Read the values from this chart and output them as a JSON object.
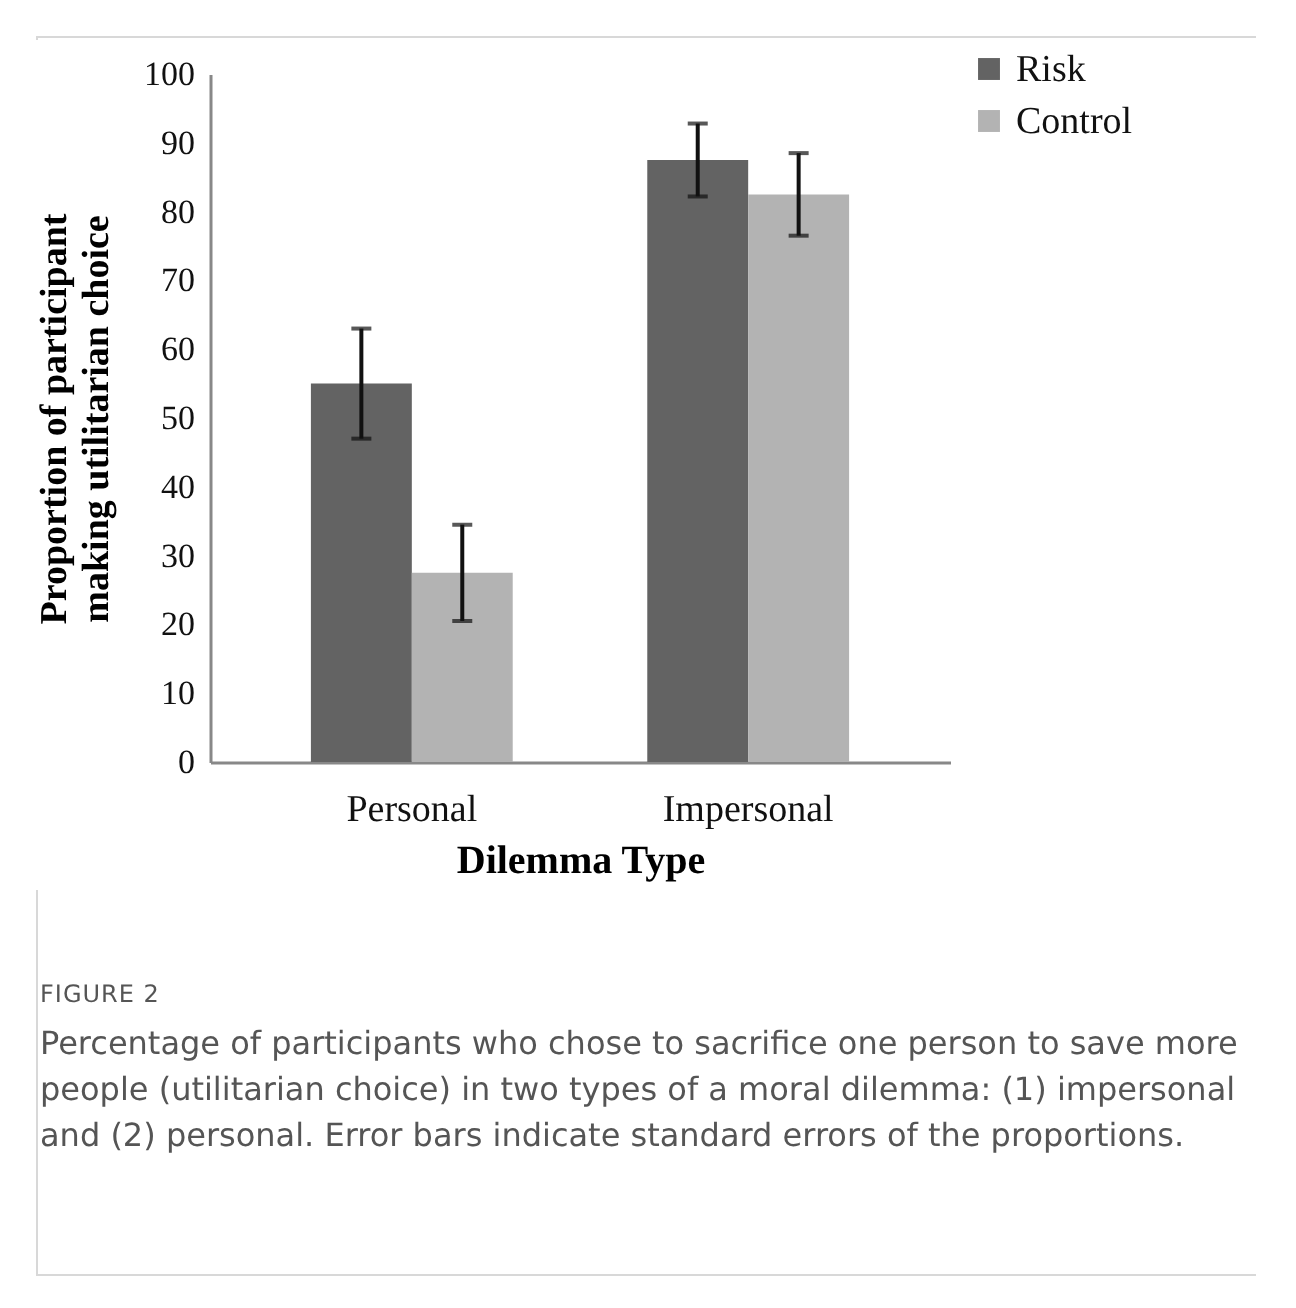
{
  "chart_data": {
    "type": "bar",
    "xlabel": "Dilemma Type",
    "ylabel": "Proportion of participant making utilitarian choice",
    "categories": [
      "Personal",
      "Impersonal"
    ],
    "series": [
      {
        "name": "Risk",
        "color": "#636363",
        "values": [
          55,
          87.5
        ],
        "errors": [
          [
            47,
            63
          ],
          [
            82.2,
            92.8
          ]
        ]
      },
      {
        "name": "Control",
        "color": "#b3b3b3",
        "values": [
          27.5,
          82.5
        ],
        "errors": [
          [
            20.5,
            34.5
          ],
          [
            76.5,
            88.5
          ]
        ]
      }
    ],
    "ylim": [
      0,
      100
    ],
    "yticks": [
      0,
      10,
      20,
      30,
      40,
      50,
      60,
      70,
      80,
      90,
      100
    ],
    "grid": false,
    "legend": "top right",
    "annotations": [
      "FIGURE 2",
      "Percentage of participants who chose to sacrifice one person to save more people (utilitarian choice) in two types of a moral dilemma: (1) impersonal and (2) personal. Error bars indicate standard errors of the proportions."
    ]
  }
}
